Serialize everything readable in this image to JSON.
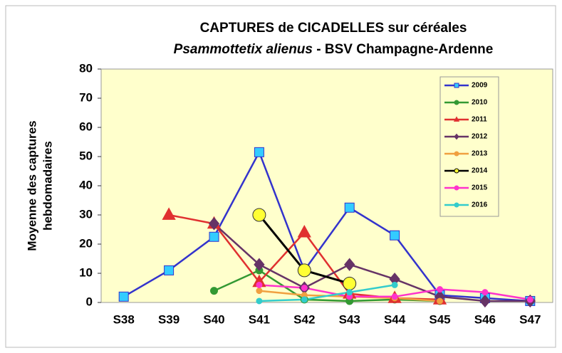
{
  "chart_data": {
    "type": "line",
    "title": "CAPTURES de CICADELLES  sur céréales",
    "subtitle": [
      "Psammottetix alienus",
      "- BSV Champagne-Ardenne"
    ],
    "ylabel": [
      "Moyenne des captures",
      "hebdomadaires"
    ],
    "categories": [
      "S38",
      "S39",
      "S40",
      "S41",
      "S42",
      "S43",
      "S44",
      "S45",
      "S46",
      "S47"
    ],
    "ylim": [
      0,
      80
    ],
    "yticks": [
      0,
      10,
      20,
      30,
      40,
      50,
      60,
      70,
      80
    ],
    "legend": "top-right",
    "series": [
      {
        "name": "2009",
        "color": "#3333cc",
        "marker": "square",
        "marker_fill": "#33ccff",
        "values": [
          2,
          11,
          22.5,
          51.5,
          11,
          32.5,
          23,
          2.5,
          1.5,
          0.5
        ]
      },
      {
        "name": "2010",
        "color": "#339933",
        "marker": "circle",
        "marker_fill": "#339933",
        "values": [
          null,
          null,
          4,
          11,
          1,
          0.5,
          1,
          0.5,
          null,
          null
        ]
      },
      {
        "name": "2011",
        "color": "#e03030",
        "marker": "triangle",
        "marker_fill": "#e03030",
        "values": [
          null,
          30,
          27,
          7,
          24,
          3,
          1.5,
          1,
          null,
          null
        ]
      },
      {
        "name": "2012",
        "color": "#663366",
        "marker": "diamond",
        "marker_fill": "#663366",
        "values": [
          null,
          null,
          27,
          13,
          5,
          13,
          8,
          2,
          0.5,
          0.5
        ]
      },
      {
        "name": "2013",
        "color": "#f0a040",
        "marker": "circle",
        "marker_fill": "#f0a040",
        "values": [
          null,
          null,
          null,
          4,
          2.5,
          2,
          1.5,
          0.5,
          null,
          null
        ]
      },
      {
        "name": "2014",
        "color": "#000000",
        "marker": "circle",
        "marker_fill": "#ffff33",
        "values": [
          null,
          null,
          null,
          30,
          11,
          6.5,
          null,
          null,
          null,
          null
        ]
      },
      {
        "name": "2015",
        "color": "#ff33cc",
        "marker": "circle",
        "marker_fill": "#ff33cc",
        "values": [
          null,
          null,
          null,
          6,
          5,
          2,
          2,
          4.5,
          3.5,
          1
        ]
      },
      {
        "name": "2016",
        "color": "#33cccc",
        "marker": "circle",
        "marker_fill": "#33cccc",
        "values": [
          null,
          null,
          null,
          0.5,
          1,
          3.5,
          6,
          null,
          null,
          null
        ]
      }
    ]
  }
}
